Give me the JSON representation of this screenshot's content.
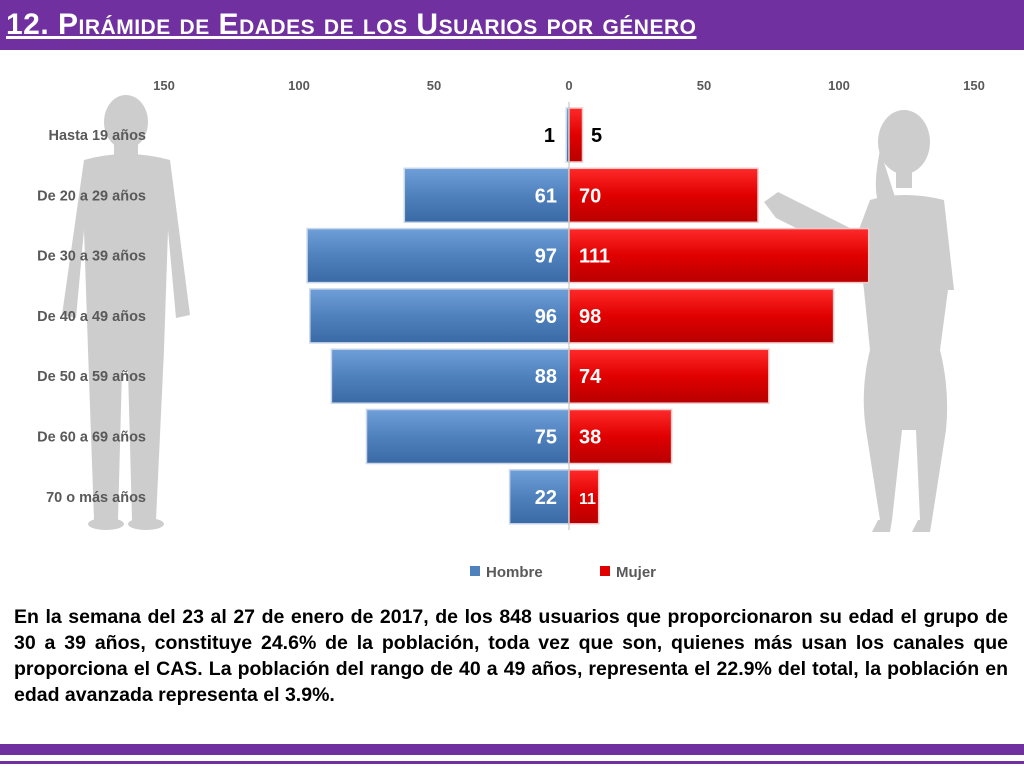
{
  "title": "12. Pirámide de Edades de los Usuarios por género",
  "colors": {
    "header": "#7030a0",
    "hombre": "#4f81bd",
    "mujer": "#e00000",
    "silhouette": "#c8c8c8",
    "axis_text": "#595959"
  },
  "chart_data": {
    "type": "bar",
    "orientation": "horizontal",
    "layout": "population-pyramid",
    "categories": [
      "Hasta 19 años",
      "De 20 a 29 años",
      "De 30 a 39 años",
      "De 40 a 49 años",
      "De 50 a 59 años",
      "De 60 a 69 años",
      "70 o más años"
    ],
    "series": [
      {
        "name": "Hombre",
        "values": [
          1,
          61,
          97,
          96,
          88,
          75,
          22
        ],
        "side": "left",
        "color": "#4f81bd"
      },
      {
        "name": "Mujer",
        "values": [
          5,
          70,
          111,
          98,
          74,
          38,
          11
        ],
        "side": "right",
        "color": "#e00000"
      }
    ],
    "x_ticks": [
      "150",
      "100",
      "50",
      "0",
      "50",
      "100",
      "150"
    ],
    "xlim": [
      -150,
      150
    ],
    "legend": {
      "position": "bottom",
      "entries": [
        "Hombre",
        "Mujer"
      ]
    },
    "grid": false
  },
  "paragraph": "En la semana del 23 al 27 de enero de 2017, de los 848 usuarios  que proporcionaron su edad el grupo de 30 a 39 años,  constituye 24.6% de la población, toda vez que son, quienes más usan los canales que proporciona el CAS. La población del rango de 40 a 49 años, representa el 22.9% del total, la población en edad avanzada representa el 3.9%."
}
